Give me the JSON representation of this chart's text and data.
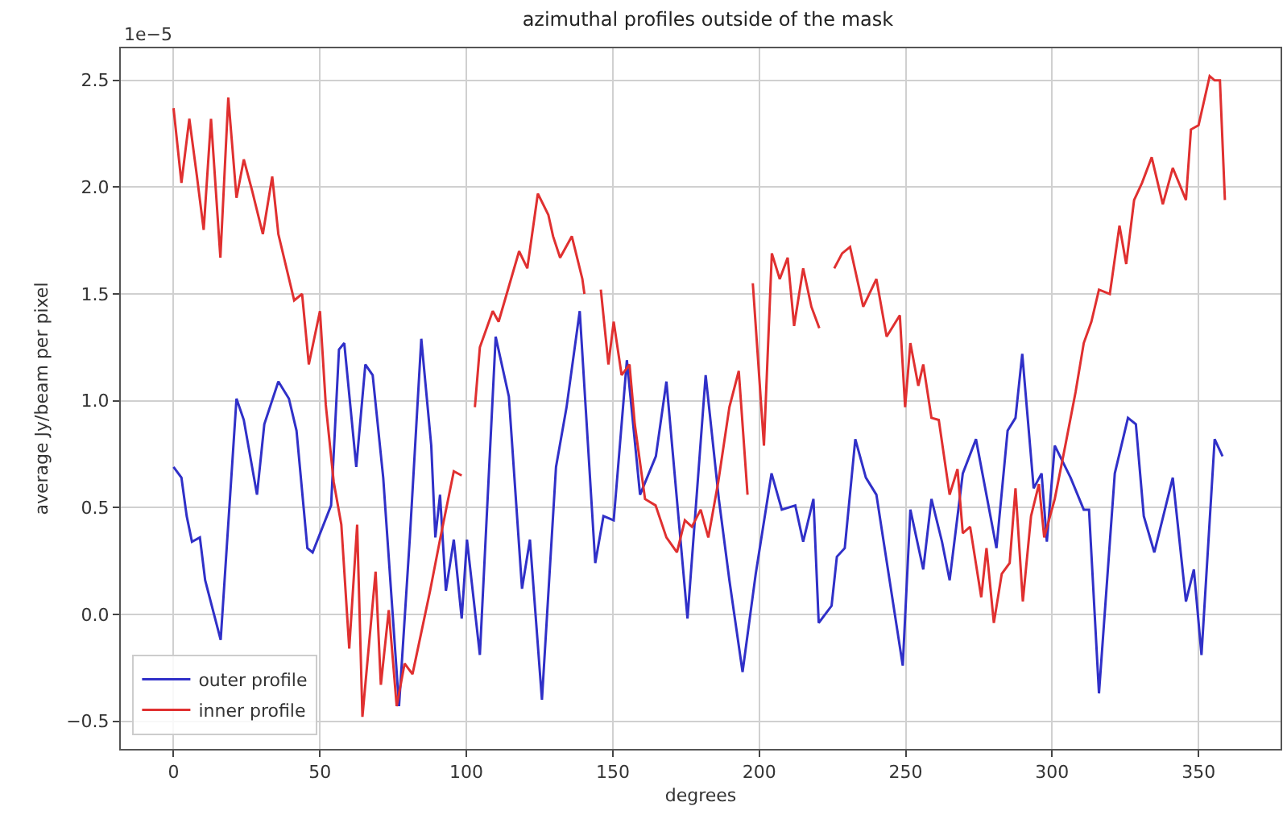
{
  "chart_data": {
    "type": "line",
    "title": "azimuthal profiles outside of the mask",
    "xlabel": "degrees",
    "ylabel": "average Jy/beam per pixel",
    "annotations": [
      "1e−5"
    ],
    "xlim": [
      -18,
      378
    ],
    "xticks": [
      0,
      50,
      100,
      150,
      200,
      250,
      300,
      350
    ],
    "ylim": [
      -0.63,
      2.65
    ],
    "yticks": [
      {
        "value": -0.5,
        "label": "−0.5"
      },
      {
        "value": 0,
        "label": "0.0"
      },
      0.5,
      {
        "value": 1,
        "label": "1.0"
      },
      1.5,
      {
        "value": 2,
        "label": "2.0"
      },
      2.5
    ],
    "grid": true,
    "legend": "bottom left",
    "line_style": "solid",
    "marker": "none",
    "series": [
      {
        "name": "outer profile",
        "color": "#3030c8",
        "x": [
          0,
          2.7,
          4.5,
          6.3,
          9,
          10.8,
          16.1,
          21.5,
          24,
          28.5,
          31,
          35.8,
          39.4,
          42,
          45.7,
          47.5,
          53.8,
          56.5,
          58.3,
          62.4,
          65.5,
          68,
          71.6,
          77,
          80.7,
          84.6,
          88,
          89.4,
          91,
          93,
          95.7,
          98.4,
          100.2,
          104.6,
          110,
          114.5,
          119,
          121.7,
          125.8,
          130.6,
          134.2,
          138.7,
          144,
          146.8,
          150.3,
          154.8,
          159.3,
          164.7,
          168.3,
          175.5,
          181.7,
          186.2,
          189.8,
          194.3,
          198.8,
          204.2,
          207.7,
          212.3,
          215,
          218.5,
          220.3,
          224.7,
          226.5,
          229.2,
          232.8,
          236.4,
          240,
          249,
          251.6,
          256,
          258.8,
          262.4,
          265,
          269.5,
          274,
          281,
          284.8,
          287.5,
          289.8,
          293.7,
          296.4,
          298.2,
          300.9,
          306.3,
          310.8,
          312.6,
          316,
          321.4,
          325.9,
          328.6,
          331.3,
          334.9,
          341.2,
          345.7,
          348.4,
          351,
          355.5,
          358.2
        ],
        "values": [
          0.69,
          0.64,
          0.46,
          0.34,
          0.36,
          0.16,
          -0.12,
          1.01,
          0.91,
          0.56,
          0.89,
          1.09,
          1.01,
          0.86,
          0.31,
          0.29,
          0.51,
          1.24,
          1.27,
          0.69,
          1.17,
          1.12,
          0.64,
          -0.43,
          0.36,
          1.29,
          0.79,
          0.36,
          0.56,
          0.11,
          0.35,
          -0.02,
          0.35,
          -0.19,
          1.3,
          1.02,
          0.12,
          0.35,
          -0.4,
          0.69,
          0.97,
          1.42,
          0.24,
          0.46,
          0.44,
          1.19,
          0.56,
          0.74,
          1.09,
          -0.02,
          1.12,
          0.54,
          0.16,
          -0.27,
          0.19,
          0.66,
          0.49,
          0.51,
          0.34,
          0.54,
          -0.04,
          0.04,
          0.27,
          0.31,
          0.82,
          0.64,
          0.56,
          -0.24,
          0.49,
          0.21,
          0.54,
          0.34,
          0.16,
          0.66,
          0.82,
          0.31,
          0.86,
          0.92,
          1.22,
          0.59,
          0.66,
          0.34,
          0.79,
          0.64,
          0.49,
          0.49,
          -0.37,
          0.66,
          0.92,
          0.89,
          0.46,
          0.29,
          0.64,
          0.06,
          0.21,
          -0.19,
          0.82,
          0.74
        ]
      },
      {
        "name": "inner profile",
        "color": "#e03030",
        "x": [
          0,
          2.7,
          5.4,
          8,
          10.3,
          12.8,
          16,
          18.7,
          21.5,
          24,
          26.9,
          30.5,
          33.7,
          35.8,
          41.2,
          43.9,
          46.2,
          50,
          52,
          54.7,
          57.3,
          60,
          62.7,
          64.5,
          69,
          70.8,
          73.5,
          76.2,
          78.9,
          81.6,
          87.6,
          91,
          95.7,
          98.4,
          100.6,
          102.9,
          104.6,
          109,
          111,
          118,
          120.8,
          124.4,
          128,
          129.6,
          132,
          136,
          139.6,
          140.3,
          143,
          145.9,
          148.5,
          150.3,
          153,
          155.7,
          157.5,
          161,
          164.6,
          168.3,
          171.9,
          174.6,
          177,
          180,
          182.6,
          186,
          189.8,
          193,
          196,
          196.9,
          197.8,
          201.6,
          204.3,
          207,
          209.7,
          211.9,
          215,
          217.8,
          220.5,
          223,
          225.6,
          228.3,
          231,
          235.5,
          240,
          243.5,
          248,
          249.8,
          251.6,
          254.3,
          256,
          258.8,
          261.3,
          265,
          267.7,
          269.5,
          272,
          275.8,
          277.6,
          280.1,
          282.8,
          285.5,
          287.5,
          290,
          292.8,
          295.5,
          297.3,
          300.9,
          304.5,
          308,
          310.8,
          313.4,
          316,
          319.7,
          323,
          325.3,
          328,
          330.7,
          334,
          337.8,
          341.2,
          345.7,
          347.4,
          350,
          353.8,
          355.5,
          357.3,
          359
        ],
        "values": [
          2.37,
          2.02,
          2.32,
          2.05,
          1.8,
          2.32,
          1.67,
          2.42,
          1.95,
          2.13,
          1.98,
          1.78,
          2.05,
          1.78,
          1.47,
          1.5,
          1.17,
          1.42,
          0.98,
          0.62,
          0.42,
          -0.16,
          0.42,
          -0.48,
          0.2,
          -0.33,
          0.02,
          -0.43,
          -0.23,
          -0.28,
          0.11,
          0.35,
          0.67,
          0.65,
          null,
          0.97,
          1.25,
          1.42,
          1.37,
          1.7,
          1.62,
          1.97,
          1.87,
          1.77,
          1.67,
          1.77,
          1.57,
          1.5,
          null,
          1.52,
          1.17,
          1.37,
          1.12,
          1.17,
          0.89,
          0.54,
          0.51,
          0.36,
          0.29,
          0.44,
          0.41,
          0.49,
          0.36,
          0.62,
          0.97,
          1.14,
          0.56,
          null,
          1.55,
          0.79,
          1.69,
          1.57,
          1.67,
          1.35,
          1.62,
          1.44,
          1.34,
          null,
          1.62,
          1.69,
          1.72,
          1.44,
          1.57,
          1.3,
          1.4,
          0.97,
          1.27,
          1.07,
          1.17,
          0.92,
          0.91,
          0.56,
          0.68,
          0.38,
          0.41,
          0.08,
          0.31,
          -0.04,
          0.19,
          0.24,
          0.59,
          0.06,
          0.46,
          0.61,
          0.36,
          0.54,
          0.79,
          1.04,
          1.27,
          1.37,
          1.52,
          1.5,
          1.82,
          1.64,
          1.94,
          2.02,
          2.14,
          1.92,
          2.09,
          1.94,
          2.27,
          2.29,
          2.52,
          2.5,
          2.5,
          1.94
        ]
      }
    ]
  }
}
